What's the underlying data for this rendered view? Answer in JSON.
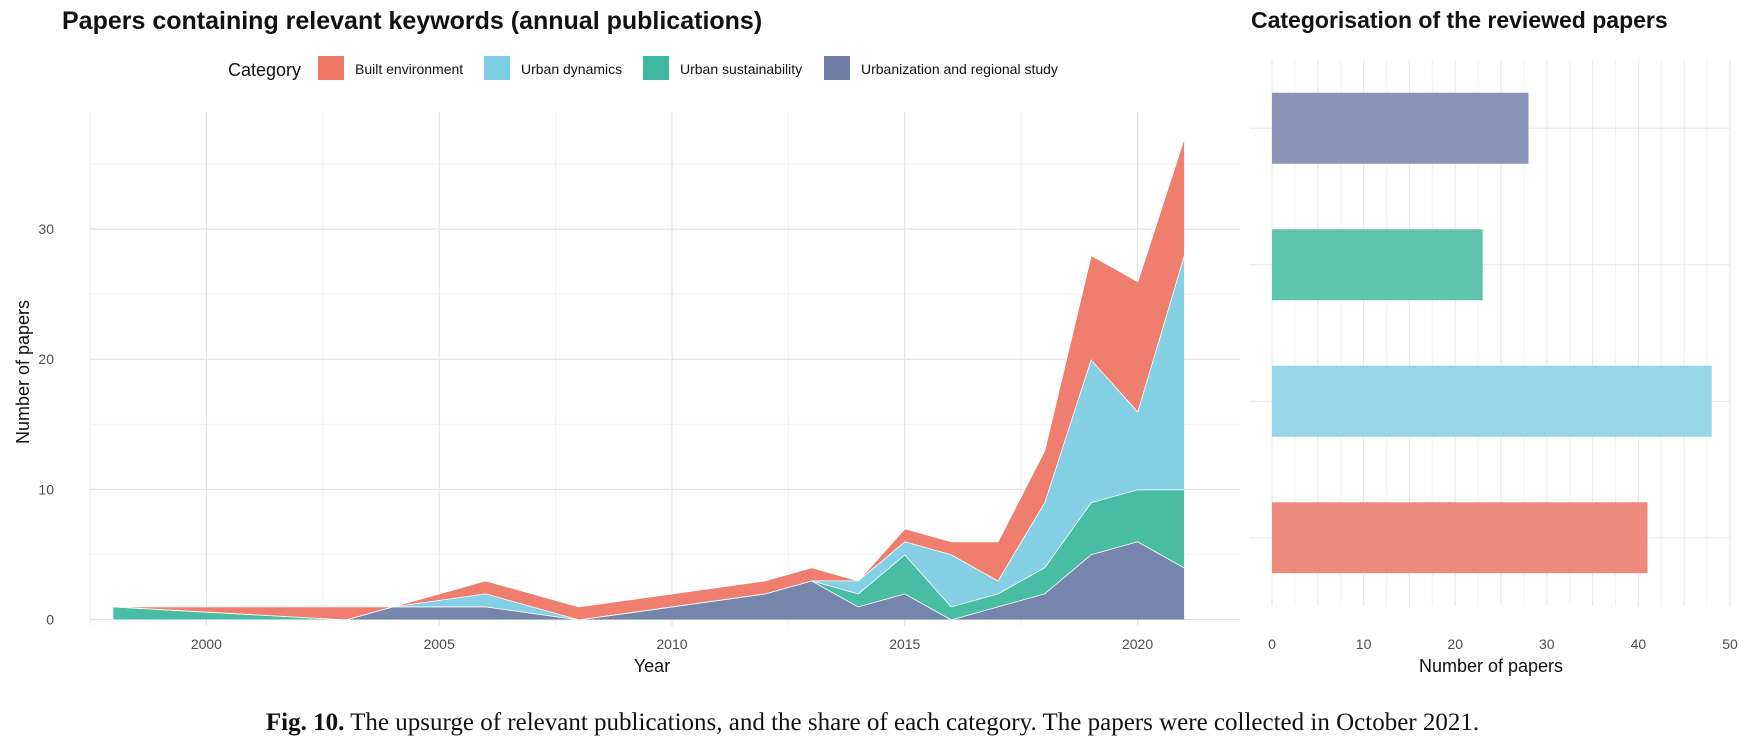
{
  "chart_data": [
    {
      "type": "area",
      "stacked": true,
      "title": "Papers containing relevant keywords (annual publications)",
      "xlabel": "Year",
      "ylabel": "Number of papers",
      "xlim": [
        1997.5,
        2022.2
      ],
      "ylim": [
        -0.5,
        39
      ],
      "xticks": [
        2000,
        2005,
        2010,
        2015,
        2020
      ],
      "yticks": [
        0,
        10,
        20,
        30
      ],
      "grid": true,
      "legend": {
        "title": "Category",
        "placement": "top",
        "entries": [
          "Built environment",
          "Urban dynamics",
          "Urban sustainability",
          "Urbanization and regional study"
        ]
      },
      "x": [
        1998,
        2003,
        2004,
        2005,
        2006,
        2008,
        2012,
        2013,
        2014,
        2015,
        2016,
        2017,
        2018,
        2019,
        2020,
        2021
      ],
      "series": [
        {
          "name": "Urbanization and regional study",
          "color": "#6f7ea6",
          "values": [
            0,
            0,
            1,
            1,
            1,
            0,
            2,
            3,
            1,
            2,
            0,
            1,
            2,
            5,
            6,
            4
          ]
        },
        {
          "name": "Urban sustainability",
          "color": "#3fb89f",
          "values": [
            1,
            0,
            0,
            0,
            0,
            0,
            0,
            0,
            1,
            3,
            1,
            1,
            2,
            4,
            4,
            6
          ]
        },
        {
          "name": "Urban dynamics",
          "color": "#7dcde3",
          "values": [
            0,
            0,
            0,
            0.5,
            1,
            0,
            0,
            0,
            1,
            1,
            4,
            1,
            5,
            11,
            6,
            18
          ]
        },
        {
          "name": "Built environment",
          "color": "#ef7766",
          "values": [
            0,
            1,
            0,
            0.5,
            1,
            1,
            1,
            1,
            0,
            1,
            1,
            3,
            4,
            8,
            10,
            9
          ]
        }
      ]
    },
    {
      "type": "bar",
      "orientation": "horizontal",
      "title": "Categorisation of the reviewed papers",
      "xlabel": "Number of papers",
      "xlim": [
        0,
        50
      ],
      "xticks": [
        0,
        10,
        20,
        30,
        40,
        50
      ],
      "grid": true,
      "categories": [
        "Urbanization and regional study",
        "Urban sustainability",
        "Urban dynamics",
        "Built environment"
      ],
      "values": [
        28,
        23,
        48,
        41
      ],
      "colors": [
        "#8a94b6",
        "#5ec4ab",
        "#97d6e7",
        "#ee8a7d"
      ]
    }
  ],
  "caption": {
    "label": "Fig. 10.",
    "text": "The upsurge of relevant publications, and the share of each category. The papers were collected in October 2021."
  }
}
